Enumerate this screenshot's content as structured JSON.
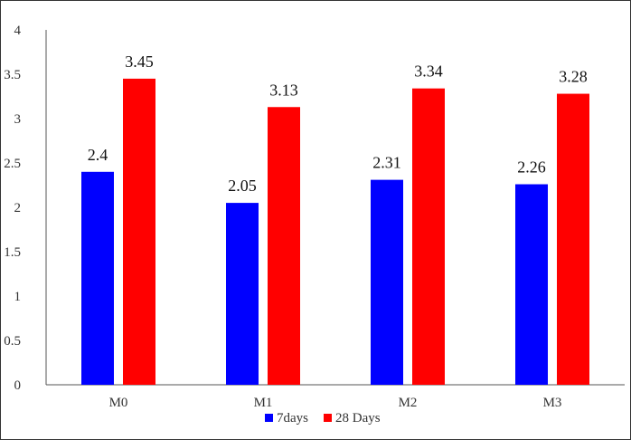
{
  "chart_data": {
    "type": "bar",
    "categories": [
      "M0",
      "M1",
      "M2",
      "M3"
    ],
    "series": [
      {
        "name": "7days",
        "color": "#0000FF",
        "values": [
          2.4,
          2.05,
          2.31,
          2.26
        ]
      },
      {
        "name": "28 Days",
        "color": "#FF0000",
        "values": [
          3.45,
          3.13,
          3.34,
          3.28
        ]
      }
    ],
    "data_labels": [
      [
        "2.4",
        "2.05",
        "2.31",
        "2.26"
      ],
      [
        "3.45",
        "3.13",
        "3.34",
        "3.28"
      ]
    ],
    "title": "",
    "xlabel": "",
    "ylabel": "",
    "ylim": [
      0,
      4
    ],
    "yticks": [
      "0",
      "0.5",
      "1",
      "1.5",
      "2",
      "2.5",
      "3",
      "3.5",
      "4"
    ],
    "grid": false,
    "legend_position": "bottom"
  }
}
